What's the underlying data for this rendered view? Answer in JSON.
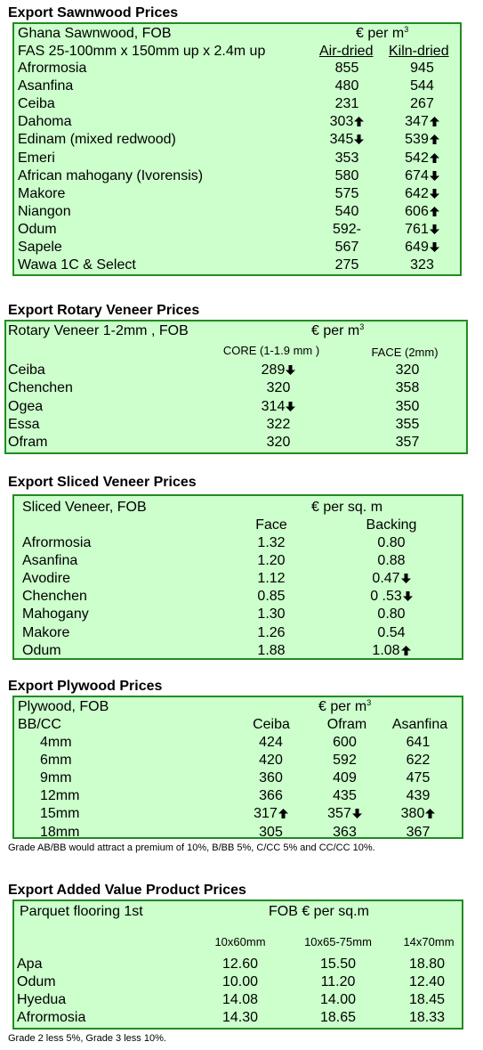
{
  "sawnwood": {
    "title": "Export Sawnwood Prices",
    "header1": "Ghana Sawnwood, FOB",
    "unit": "€ per m",
    "unit_sup": "3",
    "header2": "FAS 25-100mm x 150mm up x 2.4m up",
    "col1": "Air-dried",
    "col2": "Kiln-dried",
    "rows": [
      {
        "name": "Afrormosia",
        "a": "855",
        "a_dir": "",
        "k": "945",
        "k_dir": ""
      },
      {
        "name": "Asanfina",
        "a": "480",
        "a_dir": "",
        "k": "544",
        "k_dir": ""
      },
      {
        "name": "Ceiba",
        "a": "231",
        "a_dir": "",
        "k": "267",
        "k_dir": ""
      },
      {
        "name": "Dahoma",
        "a": "303",
        "a_dir": "up",
        "k": "347",
        "k_dir": "up"
      },
      {
        "name": "Edinam (mixed redwood)",
        "a": "345",
        "a_dir": "down",
        "k": "539",
        "k_dir": "up"
      },
      {
        "name": "Emeri",
        "a": "353",
        "a_dir": "",
        "k": "542",
        "k_dir": "up"
      },
      {
        "name": "African mahogany (Ivorensis)",
        "a": "580",
        "a_dir": "",
        "k": "674",
        "k_dir": "down"
      },
      {
        "name": "Makore",
        "a": "575",
        "a_dir": "",
        "k": "642",
        "k_dir": "down"
      },
      {
        "name": "Niangon",
        "a": "540",
        "a_dir": "",
        "k": "606",
        "k_dir": "up"
      },
      {
        "name": "Odum",
        "a": "592-",
        "a_dir": "",
        "k": "761",
        "k_dir": "down"
      },
      {
        "name": "Sapele",
        "a": "567",
        "a_dir": "",
        "k": "649",
        "k_dir": "down"
      },
      {
        "name": "Wawa 1C & Select",
        "a": "275",
        "a_dir": "",
        "k": "323",
        "k_dir": ""
      }
    ]
  },
  "rotary": {
    "title": "Export Rotary Veneer Prices",
    "header1": "Rotary Veneer 1-2mm , FOB",
    "unit": "€  per m",
    "unit_sup": "3",
    "col1": "CORE (1-1.9 mm )",
    "col2": "FACE (2mm)",
    "rows": [
      {
        "name": "Ceiba",
        "core": "289",
        "core_dir": "down",
        "face": "320",
        "face_dir": ""
      },
      {
        "name": "Chenchen",
        "core": "320",
        "core_dir": "",
        "face": "358",
        "face_dir": ""
      },
      {
        "name": "Ogea",
        "core": "314",
        "core_dir": "down",
        "face": "350",
        "face_dir": ""
      },
      {
        "name": "Essa",
        "core": "322",
        "core_dir": "",
        "face": "355",
        "face_dir": ""
      },
      {
        "name": "Ofram",
        "core": "320",
        "core_dir": "",
        "face": "357",
        "face_dir": ""
      }
    ]
  },
  "sliced": {
    "title": "Export Sliced Veneer Prices",
    "header1": "Sliced Veneer, FOB",
    "unit": "€ per sq. m",
    "col1": "Face",
    "col2": "Backing",
    "rows": [
      {
        "name": "Afrormosia",
        "face": "1.32",
        "face_dir": "",
        "back": "0.80",
        "back_dir": ""
      },
      {
        "name": "Asanfina",
        "face": "1.20",
        "face_dir": "",
        "back": "0.88",
        "back_dir": ""
      },
      {
        "name": "Avodire",
        "face": "1.12",
        "face_dir": "",
        "back": "0.47",
        "back_dir": "down"
      },
      {
        "name": "Chenchen",
        "face": "0.85",
        "face_dir": "",
        "back": "0 .53",
        "back_dir": "down"
      },
      {
        "name": "Mahogany",
        "face": "1.30",
        "face_dir": "",
        "back": "0.80",
        "back_dir": ""
      },
      {
        "name": "Makore",
        "face": "1.26",
        "face_dir": "",
        "back": "0.54",
        "back_dir": ""
      },
      {
        "name": "Odum",
        "face": "1.88",
        "face_dir": "",
        "back": "1.08",
        "back_dir": "up"
      }
    ]
  },
  "plywood": {
    "title": "Export Plywood Prices",
    "header1": "Plywood, FOB",
    "unit": "€ per m",
    "unit_sup": "3",
    "grade": "BB/CC",
    "cols": [
      "Ceiba",
      "Ofram",
      "Asanfina"
    ],
    "rows": [
      {
        "size": "4mm",
        "v1": "424",
        "d1": "",
        "v2": "600",
        "d2": "",
        "v3": "641",
        "d3": ""
      },
      {
        "size": "6mm",
        "v1": "420",
        "d1": "",
        "v2": "592",
        "d2": "",
        "v3": "622",
        "d3": ""
      },
      {
        "size": "9mm",
        "v1": "360",
        "d1": "",
        "v2": "409",
        "d2": "",
        "v3": "475",
        "d3": ""
      },
      {
        "size": "12mm",
        "v1": "366",
        "d1": "",
        "v2": "435",
        "d2": "",
        "v3": "439",
        "d3": ""
      },
      {
        "size": "15mm",
        "v1": "317",
        "d1": "up",
        "v2": "357",
        "d2": "down",
        "v3": "380",
        "d3": "up"
      },
      {
        "size": "18mm",
        "v1": "305",
        "d1": "",
        "v2": "363",
        "d2": "",
        "v3": "367",
        "d3": ""
      }
    ],
    "note": "Grade AB/BB would attract a premium of 10%, B/BB 5%, C/CC 5% and CC/CC 10%."
  },
  "added": {
    "title": "Export Added Value Product Prices",
    "header1": "Parquet flooring 1st",
    "unit": "FOB € per sq.m",
    "cols": [
      "10x60mm",
      "10x65-75mm",
      "14x70mm"
    ],
    "rows": [
      {
        "name": "Apa",
        "v1": "12.60",
        "v2": "15.50",
        "v3": "18.80"
      },
      {
        "name": "Odum",
        "v1": "10.00",
        "v2": "11.20",
        "v3": "12.40"
      },
      {
        "name": "Hyedua",
        "v1": "14.08",
        "v2": "14.00",
        "v3": "18.45"
      },
      {
        "name": "Afrormosia",
        "v1": "14.30",
        "v2": "18.65",
        "v3": "18.33"
      }
    ],
    "note": "Grade 2 less 5%, Grade 3 less 10%."
  }
}
